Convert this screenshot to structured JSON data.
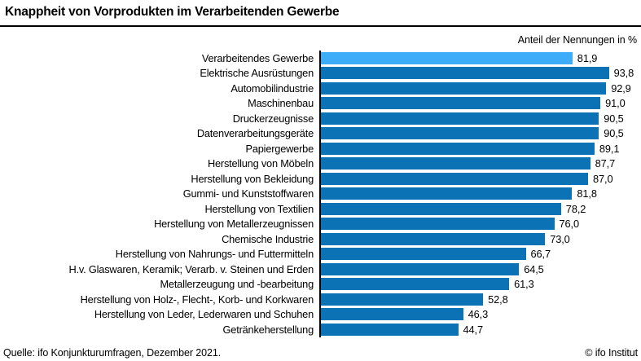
{
  "header": {
    "title": "Knappheit von Vorprodukten im Verarbeitenden Gewerbe",
    "unit_label": "Anteil der Nennungen in %"
  },
  "footer": {
    "source": "Quelle: ifo Konjunkturumfragen, Dezember 2021.",
    "copyright": "© ifo Institut"
  },
  "chart_data": {
    "type": "bar",
    "orientation": "horizontal",
    "title": "Knappheit von Vorprodukten im Verarbeitenden Gewerbe",
    "xlabel": "Anteil der Nennungen in %",
    "xlim": [
      0,
      100
    ],
    "grid": false,
    "legend": false,
    "categories": [
      "Verarbeitendes Gewerbe",
      "Elektrische Ausrüstungen",
      "Automobilindustrie",
      "Maschinenbau",
      "Druckerzeugnisse",
      "Datenverarbeitungsgeräte",
      "Papiergewerbe",
      "Herstellung von Möbeln",
      "Herstellung von Bekleidung",
      "Gummi- und Kunststoffwaren",
      "Herstellung von Textilien",
      "Herstellung von Metallerzeugnissen",
      "Chemische Industrie",
      "Herstellung von Nahrungs- und Futtermitteln",
      "H.v. Glaswaren, Keramik; Verarb. v. Steinen und Erden",
      "Metallerzeugung und -bearbeitung",
      "Herstellung von Holz-, Flecht-, Korb- und Korkwaren",
      "Herstellung von Leder, Lederwaren und Schuhen",
      "Getränkeherstellung"
    ],
    "values": [
      81.9,
      93.8,
      92.9,
      91.0,
      90.5,
      90.5,
      89.1,
      87.7,
      87.0,
      81.8,
      78.2,
      76.0,
      73.0,
      66.7,
      64.5,
      61.3,
      52.8,
      46.3,
      44.7
    ],
    "value_labels": [
      "81,9",
      "93,8",
      "92,9",
      "91,0",
      "90,5",
      "90,5",
      "89,1",
      "87,7",
      "87,0",
      "81,8",
      "78,2",
      "76,0",
      "73,0",
      "66,7",
      "64,5",
      "61,3",
      "52,8",
      "46,3",
      "44,7"
    ],
    "highlight_index": 0,
    "colors": {
      "highlight_bar": "#3dadf9",
      "bar": "#0b72b5",
      "axis": "#000000"
    }
  }
}
